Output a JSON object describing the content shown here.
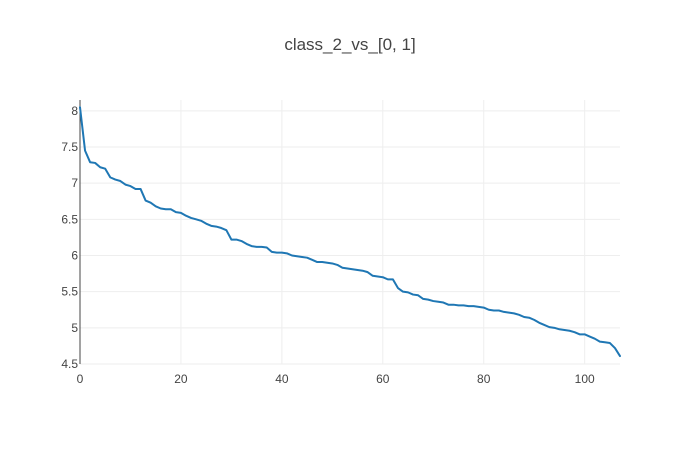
{
  "chart_data": {
    "type": "line",
    "title": "class_2_vs_[0, 1]",
    "xlabel": "",
    "ylabel": "",
    "xlim": [
      0,
      107
    ],
    "ylim": [
      4.5,
      8.15
    ],
    "xticks": [
      0,
      20,
      40,
      60,
      80,
      100
    ],
    "yticks": [
      4.5,
      5,
      5.5,
      6,
      6.5,
      7,
      7.5,
      8
    ],
    "xtick_labels": [
      "0",
      "20",
      "40",
      "60",
      "80",
      "100"
    ],
    "ytick_labels": [
      "4.5",
      "5",
      "5.5",
      "6",
      "6.5",
      "7",
      "7.5",
      "8"
    ],
    "grid": true,
    "legend": "none",
    "line_color": "#1f77b4",
    "series": [
      {
        "x": [
          0,
          1,
          2,
          3,
          4,
          5,
          6,
          7,
          8,
          9,
          10,
          11,
          12,
          13,
          14,
          15,
          16,
          17,
          18,
          19,
          20,
          21,
          22,
          23,
          24,
          25,
          26,
          27,
          28,
          29,
          30,
          31,
          32,
          33,
          34,
          35,
          36,
          37,
          38,
          39,
          40,
          41,
          42,
          43,
          44,
          45,
          46,
          47,
          48,
          49,
          50,
          51,
          52,
          53,
          54,
          55,
          56,
          57,
          58,
          59,
          60,
          61,
          62,
          63,
          64,
          65,
          66,
          67,
          68,
          69,
          70,
          71,
          72,
          73,
          74,
          75,
          76,
          77,
          78,
          79,
          80,
          81,
          82,
          83,
          84,
          85,
          86,
          87,
          88,
          89,
          90,
          91,
          92,
          93,
          94,
          95,
          96,
          97,
          98,
          99,
          100,
          101,
          102,
          103,
          104,
          105,
          106,
          107
        ],
        "y": [
          8.05,
          7.45,
          7.29,
          7.28,
          7.22,
          7.2,
          7.08,
          7.05,
          7.03,
          6.98,
          6.96,
          6.92,
          6.92,
          6.76,
          6.73,
          6.68,
          6.65,
          6.64,
          6.64,
          6.6,
          6.59,
          6.55,
          6.52,
          6.5,
          6.48,
          6.44,
          6.41,
          6.4,
          6.38,
          6.35,
          6.22,
          6.22,
          6.2,
          6.16,
          6.13,
          6.12,
          6.12,
          6.11,
          6.05,
          6.04,
          6.04,
          6.03,
          6.0,
          5.99,
          5.98,
          5.97,
          5.94,
          5.91,
          5.91,
          5.9,
          5.89,
          5.87,
          5.83,
          5.82,
          5.81,
          5.8,
          5.79,
          5.77,
          5.72,
          5.71,
          5.7,
          5.67,
          5.67,
          5.55,
          5.5,
          5.49,
          5.46,
          5.45,
          5.4,
          5.39,
          5.37,
          5.36,
          5.35,
          5.32,
          5.32,
          5.31,
          5.31,
          5.3,
          5.3,
          5.29,
          5.28,
          5.25,
          5.24,
          5.24,
          5.22,
          5.21,
          5.2,
          5.18,
          5.15,
          5.14,
          5.11,
          5.07,
          5.04,
          5.01,
          5.0,
          4.98,
          4.97,
          4.96,
          4.94,
          4.91,
          4.91,
          4.88,
          4.85,
          4.81,
          4.8,
          4.79,
          4.72,
          4.61
        ]
      }
    ]
  }
}
